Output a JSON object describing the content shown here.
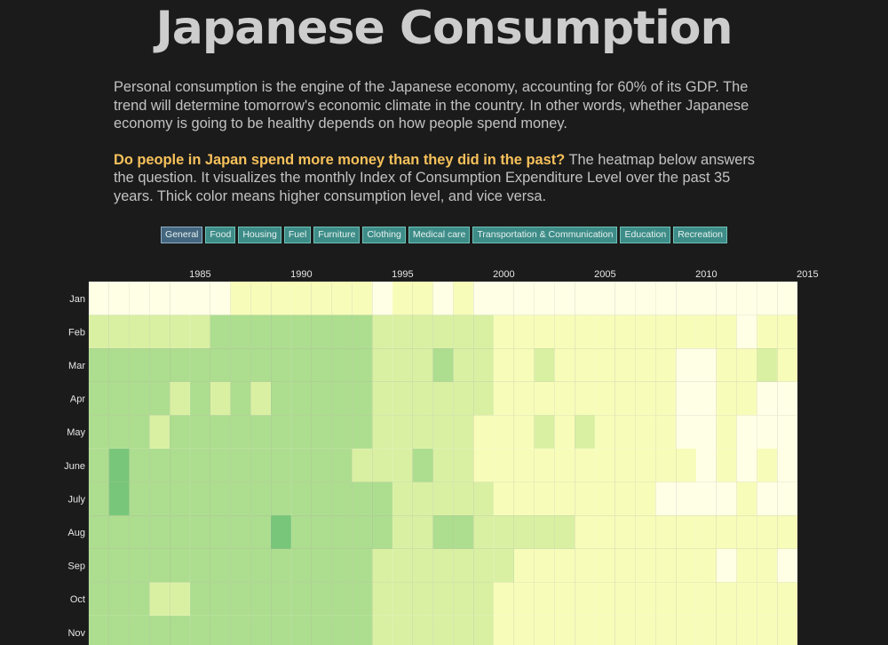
{
  "title": "Japanese Consumption",
  "intro": {
    "p1": "Personal consumption is the engine of the Japanese economy, accounting for 60% of its GDP. The trend will determine tomorrow's economic climate in the country. In other words, whether Japanese economy is going to be healthy depends on how people spend money.",
    "question": "Do people in Japan spend more money than they did in the past?",
    "p2_rest": " The heatmap below answers the question. It visualizes the monthly Index of Consumption Expenditure Level over the past 35 years. Thick color means higher consumption level, and vice versa."
  },
  "tabs": [
    "General",
    "Food",
    "Housing",
    "Fuel",
    "Furniture",
    "Clothing",
    "Medical care",
    "Transportation & Communication",
    "Education",
    "Recreation"
  ],
  "active_tab": "General",
  "colors": {
    "background": "#1b1b1b",
    "question": "#f7c15b",
    "tab": "#3d8c88",
    "tab_active": "#44667f",
    "scale": [
      "#ffffe5",
      "#f7fcb9",
      "#d9f0a3",
      "#addd8e",
      "#78c679",
      "#41ab5d"
    ]
  },
  "chart_data": {
    "type": "heatmap",
    "x_ticks": [
      "1985",
      "1990",
      "1995",
      "2000",
      "2005",
      "2010",
      "2015"
    ],
    "years": [
      1980,
      1981,
      1982,
      1983,
      1984,
      1985,
      1986,
      1987,
      1988,
      1989,
      1990,
      1991,
      1992,
      1993,
      1994,
      1995,
      1996,
      1997,
      1998,
      1999,
      2000,
      2001,
      2002,
      2003,
      2004,
      2005,
      2006,
      2007,
      2008,
      2009,
      2010,
      2011,
      2012,
      2013,
      2014
    ],
    "months": [
      "Jan",
      "Feb",
      "Mar",
      "Apr",
      "May",
      "June",
      "July",
      "Aug",
      "Sep",
      "Oct",
      "Nov"
    ],
    "value_range": [
      0,
      5
    ],
    "values": [
      [
        0,
        0,
        0,
        0,
        0,
        0,
        0,
        1,
        1,
        1,
        1,
        1,
        1,
        1,
        0,
        1,
        1,
        0,
        1,
        0,
        0,
        0,
        0,
        0,
        0,
        0,
        0,
        0,
        0,
        0,
        0,
        0,
        0,
        0,
        0
      ],
      [
        2,
        2,
        2,
        2,
        2,
        2,
        3,
        3,
        3,
        3,
        3,
        3,
        3,
        3,
        2,
        2,
        2,
        2,
        2,
        2,
        1,
        1,
        1,
        1,
        1,
        1,
        1,
        1,
        1,
        1,
        1,
        1,
        0,
        1,
        1
      ],
      [
        3,
        3,
        3,
        3,
        3,
        3,
        3,
        3,
        3,
        3,
        3,
        3,
        3,
        3,
        2,
        2,
        2,
        3,
        2,
        2,
        1,
        1,
        2,
        1,
        1,
        1,
        1,
        1,
        1,
        0,
        0,
        1,
        1,
        2,
        1
      ],
      [
        3,
        3,
        3,
        3,
        2,
        3,
        2,
        3,
        2,
        3,
        3,
        3,
        3,
        3,
        2,
        2,
        2,
        2,
        2,
        2,
        1,
        1,
        1,
        1,
        1,
        1,
        1,
        1,
        1,
        0,
        0,
        1,
        1,
        0,
        0
      ],
      [
        3,
        3,
        3,
        2,
        3,
        3,
        3,
        3,
        3,
        3,
        3,
        3,
        3,
        3,
        2,
        2,
        2,
        2,
        2,
        1,
        1,
        1,
        2,
        1,
        2,
        1,
        1,
        1,
        1,
        0,
        0,
        1,
        0,
        0,
        0
      ],
      [
        3,
        4,
        3,
        3,
        3,
        3,
        3,
        3,
        3,
        3,
        3,
        3,
        3,
        2,
        2,
        2,
        3,
        2,
        2,
        1,
        1,
        1,
        1,
        1,
        1,
        1,
        1,
        1,
        1,
        1,
        0,
        1,
        0,
        1,
        0
      ],
      [
        3,
        4,
        3,
        3,
        3,
        3,
        3,
        3,
        3,
        3,
        3,
        3,
        3,
        3,
        3,
        2,
        2,
        2,
        2,
        2,
        1,
        1,
        1,
        1,
        1,
        1,
        1,
        1,
        0,
        0,
        0,
        0,
        1,
        0,
        0
      ],
      [
        3,
        3,
        3,
        3,
        3,
        3,
        3,
        3,
        3,
        4,
        3,
        3,
        3,
        3,
        3,
        2,
        2,
        3,
        3,
        2,
        2,
        2,
        2,
        2,
        1,
        1,
        1,
        1,
        1,
        1,
        1,
        1,
        1,
        1,
        1
      ],
      [
        3,
        3,
        3,
        3,
        3,
        3,
        3,
        3,
        3,
        3,
        3,
        3,
        3,
        3,
        2,
        2,
        2,
        2,
        2,
        2,
        2,
        1,
        1,
        1,
        1,
        1,
        1,
        1,
        1,
        1,
        1,
        0,
        1,
        1,
        0
      ],
      [
        3,
        3,
        3,
        2,
        2,
        3,
        3,
        3,
        3,
        3,
        3,
        3,
        3,
        3,
        2,
        2,
        2,
        2,
        2,
        2,
        1,
        1,
        1,
        1,
        1,
        1,
        1,
        1,
        1,
        1,
        1,
        1,
        1,
        1,
        1
      ],
      [
        3,
        3,
        3,
        3,
        3,
        3,
        3,
        3,
        3,
        3,
        3,
        3,
        3,
        3,
        2,
        2,
        2,
        2,
        2,
        2,
        1,
        1,
        1,
        1,
        1,
        1,
        1,
        1,
        1,
        1,
        1,
        1,
        1,
        1,
        1
      ]
    ]
  }
}
